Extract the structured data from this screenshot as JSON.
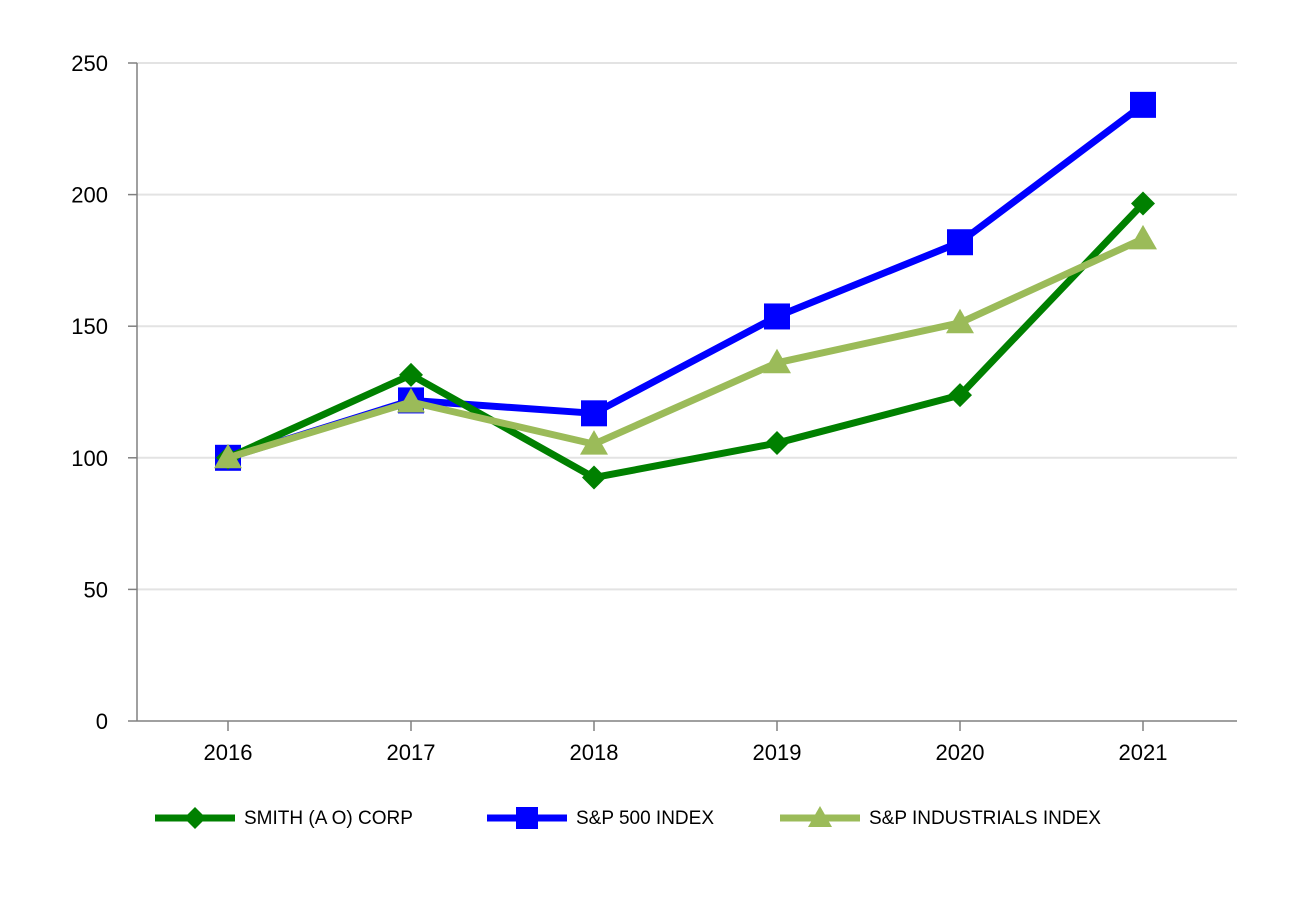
{
  "chart_data": {
    "type": "line",
    "title": "",
    "xlabel": "",
    "ylabel": "",
    "categories": [
      "2016",
      "2017",
      "2018",
      "2019",
      "2020",
      "2021"
    ],
    "ylim": [
      0,
      250
    ],
    "yticks": [
      0,
      50,
      100,
      150,
      200,
      250
    ],
    "grid": true,
    "legend_position": "bottom",
    "series": [
      {
        "name": "SMITH (A O) CORP",
        "color": "#008000",
        "marker": "diamond",
        "values": [
          100,
          131.5,
          92.5,
          105.6,
          123.8,
          196.6
        ]
      },
      {
        "name": "S&P 500 INDEX",
        "color": "#0000ff",
        "marker": "square",
        "values": [
          100,
          121.8,
          116.9,
          153.7,
          181.9,
          234.1
        ]
      },
      {
        "name": "S&P INDUSTRIALS INDEX",
        "color": "#9bbb59",
        "marker": "triangle",
        "values": [
          100,
          121.2,
          105.2,
          136.1,
          151.3,
          183.2
        ]
      }
    ]
  }
}
